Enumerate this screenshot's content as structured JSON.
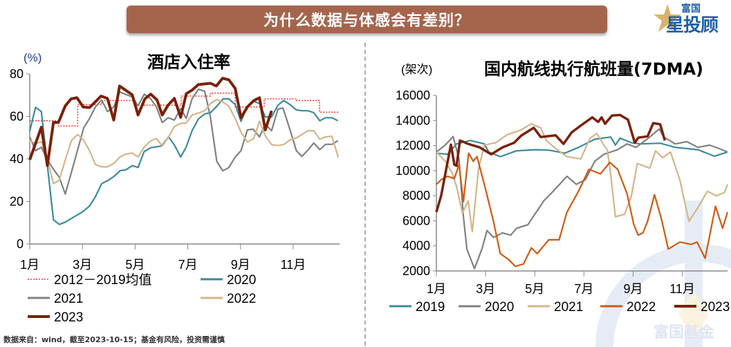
{
  "header": {
    "title": "为什么数据与体感会有差别？"
  },
  "logo": {
    "top": "富国",
    "main": "星投顾"
  },
  "watermark": "富国基金",
  "footer": "数据来自：wind，截至2023-10-15；基金有风险，投资需谨慎",
  "colors": {
    "banner": "#a5654d",
    "avg": "#ff3333",
    "y2019": "#3a8a9c",
    "y2020_left": "#3a8a9c",
    "grey": "#808080",
    "tan": "#d4b48a",
    "orange": "#cc5a14",
    "dark": "#7a2008"
  },
  "chart_data": [
    {
      "type": "line",
      "title": "酒店入住率",
      "ylabel": "(%)",
      "ylim": [
        0,
        80
      ],
      "yticks": [
        "0",
        "20",
        "40",
        "60",
        "80"
      ],
      "xticks": [
        {
          "m": 1,
          "label": "1月"
        },
        {
          "m": 3,
          "label": "3月"
        },
        {
          "m": 5,
          "label": "5月"
        },
        {
          "m": 7,
          "label": "7月"
        },
        {
          "m": 9,
          "label": "9月"
        },
        {
          "m": 11,
          "label": "11月"
        }
      ],
      "xlim": [
        1,
        12.76
      ],
      "legend": "bottom",
      "grid": false,
      "series": [
        {
          "name": "2012－2019均值",
          "color": "#ff3333",
          "style": "dotted",
          "x": [
            1,
            2.09,
            2.09,
            2.82,
            2.82,
            3.73,
            3.73,
            5.0,
            5.0,
            6.75,
            6.75,
            7.86,
            7.86,
            8.8,
            8.8,
            9.9,
            9.9,
            11.1,
            11.1,
            12.0,
            12.0,
            12.76
          ],
          "y": [
            58,
            58,
            55.5,
            55.5,
            65.6,
            65.6,
            67.5,
            67.5,
            65.3,
            65.3,
            69.6,
            69.6,
            71,
            71,
            64.5,
            64.5,
            68.3,
            68.3,
            67.5,
            67.5,
            62,
            62
          ]
        },
        {
          "name": "2020",
          "color": "#3a8a9c",
          "x": [
            1,
            1.22,
            1.44,
            1.67,
            1.9,
            2.12,
            2.35,
            3.01,
            3.27,
            3.49,
            3.73,
            3.95,
            4.19,
            4.43,
            4.65,
            4.89,
            5.11,
            5.34,
            5.59,
            6,
            6.27,
            6.49,
            6.73,
            6.94,
            7.16,
            7.4,
            7.64,
            7.86,
            8.1,
            8.34,
            8.56,
            8.8,
            9.02,
            9.26,
            9.48,
            9.72,
            9.94,
            10.18,
            10.42,
            10.64,
            10.88,
            11.12,
            11.33,
            11.56,
            11.78,
            12.01,
            12.23,
            12.47,
            12.7
          ],
          "y": [
            53.1,
            64.3,
            62.3,
            36.9,
            11.4,
            9.2,
            10.3,
            15.2,
            17.9,
            22.2,
            28.4,
            29.8,
            31.7,
            34.5,
            34.9,
            36.9,
            36,
            43.4,
            45.3,
            46.1,
            50.4,
            46.6,
            40.9,
            45.7,
            53.3,
            58.8,
            61.2,
            61.8,
            64.8,
            68.3,
            68.3,
            65.6,
            57.7,
            64.8,
            67.2,
            66.1,
            59.8,
            59.8,
            65.3,
            67.5,
            65.6,
            63.1,
            62.7,
            62.7,
            61.8,
            58,
            59.4,
            59.4,
            58
          ]
        },
        {
          "name": "2021",
          "color": "#808080",
          "x": [
            1,
            1.22,
            1.44,
            1.67,
            1.9,
            2.12,
            2.35,
            2.59,
            2.82,
            3.05,
            3.27,
            3.49,
            3.73,
            3.95,
            4.19,
            4.41,
            4.89,
            5.11,
            5.35,
            5.59,
            5.81,
            6.03,
            6.25,
            6.49,
            6.73,
            6.94,
            7.16,
            7.4,
            7.64,
            7.86,
            8.1,
            8.33,
            8.56,
            8.8,
            9.02,
            9.26,
            9.48,
            9.72,
            9.94,
            10.18,
            10.42,
            10.61,
            10.88,
            11.12,
            11.33,
            11.56,
            11.78,
            12.01,
            12.23,
            12.47,
            12.7
          ],
          "y": [
            50.4,
            43.9,
            45.5,
            39.6,
            35.2,
            31.4,
            23.5,
            34.1,
            44.4,
            54.7,
            59.1,
            64.5,
            67.8,
            62.3,
            64.5,
            71.5,
            69.2,
            65,
            70.5,
            68.3,
            64.5,
            57.1,
            59.4,
            58.3,
            63.7,
            59.1,
            68.3,
            72.8,
            71.9,
            59.6,
            38.8,
            34.4,
            36,
            40.9,
            43.9,
            53.7,
            54,
            50.4,
            56.4,
            53.3,
            63.4,
            64,
            53.7,
            43.9,
            41.2,
            44.2,
            47.5,
            44.4,
            46.9,
            46.9,
            48.6
          ]
        },
        {
          "name": "2022",
          "color": "#d4b48a",
          "x": [
            1,
            1.22,
            1.44,
            1.67,
            1.9,
            2.12,
            2.35,
            2.59,
            2.82,
            3.05,
            3.27,
            3.49,
            3.73,
            3.95,
            4.19,
            4.43,
            4.65,
            4.89,
            5.11,
            5.34,
            5.59,
            5.81,
            6.03,
            6.27,
            6.49,
            6.73,
            6.94,
            7.16,
            7.4,
            7.64,
            7.86,
            8.1,
            8.34,
            8.56,
            8.8,
            9.02,
            9.26,
            9.5,
            9.72,
            9.94,
            10.18,
            10.42,
            10.64,
            10.88,
            11.12,
            11.33,
            11.56,
            11.78,
            12.01,
            12.23,
            12.47,
            12.71
          ],
          "y": [
            48.8,
            47.2,
            48.2,
            39.6,
            28.4,
            30,
            39.6,
            48.8,
            51.5,
            48.8,
            43.9,
            37.4,
            36.3,
            36.3,
            37.9,
            41,
            42.3,
            42.8,
            41,
            45.5,
            48.6,
            49.6,
            46.1,
            50.4,
            55.3,
            56.7,
            56.9,
            60.7,
            61.6,
            62.7,
            66.1,
            68,
            66.7,
            64.8,
            59.1,
            52.6,
            47.9,
            49.6,
            57.7,
            50.9,
            46.8,
            46.3,
            46.8,
            49,
            49.9,
            51.5,
            53.3,
            53.3,
            49.3,
            50.4,
            50.7,
            40.7
          ]
        },
        {
          "name": "2023",
          "color": "#7a2008",
          "width": 4,
          "x": [
            1,
            1.44,
            1.67,
            1.9,
            2.09,
            2.35,
            2.57,
            2.79,
            3.03,
            3.27,
            3.71,
            3.95,
            4.19,
            4.41,
            4.89,
            5.11,
            5.37,
            5.59,
            5.83,
            6.03,
            6.25,
            6.49,
            6.73,
            6.94,
            7.16,
            7.4,
            7.86,
            8.08,
            8.32,
            8.56,
            8.8,
            9.02,
            9.26,
            9.5,
            9.72,
            9.94,
            10.18
          ],
          "y": [
            39.6,
            55,
            36.9,
            57.2,
            57.2,
            65,
            68.3,
            68.8,
            64.5,
            64.2,
            69.6,
            68.5,
            58.3,
            74.3,
            70.2,
            60.7,
            68.3,
            70.5,
            67.8,
            60.7,
            65.3,
            68.5,
            59.6,
            70.7,
            72.4,
            75,
            75.6,
            74.3,
            78,
            77.2,
            73.2,
            59.4,
            64.5,
            67.4,
            68.8,
            53.7,
            62.7
          ]
        }
      ]
    },
    {
      "type": "line",
      "title": "国内航线执行航班量(7DMA)",
      "ylabel": "(架次)",
      "ylim": [
        2000,
        16000
      ],
      "yticks": [
        "2000",
        "4000",
        "6000",
        "8000",
        "10000",
        "12000",
        "14000",
        "16000"
      ],
      "xticks": [
        {
          "m": 1,
          "label": "1月"
        },
        {
          "m": 3,
          "label": "3月"
        },
        {
          "m": 5,
          "label": "5月"
        },
        {
          "m": 7,
          "label": "7月"
        },
        {
          "m": 9,
          "label": "9月"
        },
        {
          "m": 11,
          "label": "11月"
        }
      ],
      "xlim": [
        1,
        12.84
      ],
      "legend": "bottom",
      "grid": false,
      "series": [
        {
          "name": "2019",
          "color": "#3a8a9c",
          "x": [
            1,
            1.45,
            1.82,
            2.38,
            2.95,
            3.13,
            3.6,
            4.26,
            5,
            5.57,
            6.22,
            6.78,
            7.44,
            8.09,
            8.28,
            8.47,
            8.93,
            9.3,
            10.1,
            10.71,
            11.64,
            12.3,
            12.84
          ],
          "y": [
            11394,
            11302,
            12131,
            12407,
            12131,
            11487,
            11118,
            11578,
            11670,
            11634,
            11394,
            11855,
            12499,
            12684,
            12039,
            12592,
            12223,
            12131,
            12186,
            11855,
            11670,
            11155,
            11487
          ]
        },
        {
          "name": "2020",
          "color": "#808080",
          "x": [
            1,
            1.36,
            1.68,
            1.92,
            2.1,
            2.24,
            2.55,
            2.85,
            3.06,
            3.32,
            3.69,
            4.02,
            4.26,
            4.72,
            5,
            5.38,
            5.75,
            6.31,
            6.69,
            7.06,
            7.44,
            7.81,
            8.37,
            8.75,
            9.12,
            9.68,
            10.06,
            10.24,
            10.71,
            11.18,
            11.64,
            12.11,
            12.49,
            12.84
          ],
          "y": [
            11487,
            12039,
            12720,
            10933,
            6329,
            3750,
            2184,
            3750,
            5224,
            4671,
            5039,
            4855,
            5408,
            5684,
            6513,
            7618,
            8355,
            9552,
            8907,
            9276,
            10749,
            11302,
            11670,
            12131,
            11855,
            12684,
            13328,
            12684,
            12131,
            12315,
            11855,
            12039,
            11763,
            11487
          ]
        },
        {
          "name": "2021",
          "color": "#d4b48a",
          "x": [
            1,
            1.36,
            1.64,
            1.82,
            2.06,
            2.29,
            2.46,
            2.71,
            2.95,
            3.41,
            3.88,
            4.44,
            4.86,
            5.24,
            5.47,
            5.85,
            6.31,
            6.87,
            7.25,
            7.53,
            7.81,
            7.95,
            8.09,
            8.28,
            8.65,
            8.93,
            9.17,
            9.68,
            9.91,
            10.2,
            10.52,
            10.9,
            11.27,
            11.64,
            12.02,
            12.39,
            12.72,
            12.84
          ],
          "y": [
            11487,
            10749,
            9829,
            8723,
            6605,
            7581,
            5131,
            10105,
            12039,
            12223,
            12868,
            13236,
            13734,
            13420,
            12407,
            11763,
            11118,
            10933,
            12592,
            12960,
            12039,
            11670,
            9644,
            6329,
            6513,
            7987,
            10565,
            10197,
            11578,
            11026,
            11487,
            9276,
            5960,
            7065,
            8355,
            7987,
            8263,
            8907
          ]
        },
        {
          "name": "2022",
          "color": "#cc5a14",
          "x": [
            1,
            1.19,
            1.45,
            1.73,
            1.92,
            2.1,
            2.31,
            2.5,
            2.65,
            2.95,
            3.32,
            3.6,
            3.93,
            4.21,
            4.54,
            4.86,
            5.1,
            5.57,
            5.99,
            6.31,
            6.78,
            7.2,
            7.67,
            8.05,
            8.37,
            8.75,
            9.03,
            9.21,
            9.4,
            9.59,
            9.87,
            10.15,
            10.43,
            10.9,
            11.36,
            11.6,
            11.93,
            12.35,
            12.64,
            12.84
          ],
          "y": [
            8907,
            9276,
            9552,
            9368,
            10473,
            7526,
            11394,
            10749,
            11118,
            8907,
            5960,
            3381,
            2921,
            2368,
            2553,
            3842,
            3381,
            4487,
            4487,
            6697,
            8355,
            10105,
            9736,
            10657,
            10105,
            8171,
            5684,
            4855,
            5039,
            5960,
            8079,
            6145,
            3750,
            4303,
            4119,
            4303,
            3013,
            7158,
            5408,
            6697
          ]
        },
        {
          "name": "2023",
          "color": "#7a2008",
          "width": 3.5,
          "x": [
            1,
            1.19,
            1.59,
            1.73,
            1.82,
            1.96,
            2.29,
            2.76,
            3.23,
            3.69,
            4.16,
            4.44,
            4.96,
            5.24,
            5.85,
            6.17,
            6.5,
            6.97,
            7.34,
            7.58,
            7.72,
            7.86,
            8.14,
            8.47,
            8.79,
            9.07,
            9.21,
            9.59,
            9.82,
            10.1,
            10.29
          ],
          "y": [
            6697,
            7987,
            12076,
            10473,
            10381,
            12407,
            12131,
            11855,
            11302,
            11855,
            12223,
            12776,
            13420,
            12684,
            12813,
            12131,
            13052,
            13734,
            14249,
            13881,
            14249,
            13734,
            14397,
            14434,
            14065,
            12223,
            12629,
            12739,
            13789,
            13697,
            12407
          ]
        }
      ]
    }
  ]
}
